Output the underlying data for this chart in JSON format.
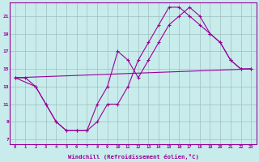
{
  "xlabel": "Windchill (Refroidissement éolien,°C)",
  "bg_color": "#c8ecec",
  "line_color": "#990099",
  "grid_color": "#9fbfbf",
  "xlim": [
    -0.5,
    23.5
  ],
  "ylim": [
    6.5,
    22.5
  ],
  "xticks": [
    0,
    1,
    2,
    3,
    4,
    5,
    6,
    7,
    8,
    9,
    10,
    11,
    12,
    13,
    14,
    15,
    16,
    17,
    18,
    19,
    20,
    21,
    22,
    23
  ],
  "yticks": [
    7,
    9,
    11,
    13,
    15,
    17,
    19,
    21
  ],
  "line1_x": [
    0,
    1,
    2,
    3,
    4,
    5,
    6,
    7,
    8,
    9,
    10,
    11,
    12,
    13,
    14,
    15,
    16,
    17,
    18,
    19,
    20,
    21,
    22,
    23
  ],
  "line1_y": [
    14,
    14,
    13,
    11,
    9,
    8,
    8,
    8,
    9,
    11,
    11,
    13,
    16,
    18,
    20,
    22,
    22,
    21,
    20,
    19,
    18,
    16,
    15,
    15
  ],
  "line2_x": [
    0,
    2,
    3,
    4,
    5,
    6,
    7,
    8,
    9,
    10,
    11,
    12,
    13,
    14,
    15,
    16,
    17,
    18,
    19,
    20,
    21,
    22,
    23
  ],
  "line2_y": [
    14,
    13,
    11,
    9,
    8,
    8,
    8,
    11,
    13,
    17,
    16,
    14,
    16,
    18,
    20,
    21,
    22,
    21,
    19,
    18,
    16,
    15,
    15
  ],
  "line3_x": [
    0,
    23
  ],
  "line3_y": [
    14,
    15
  ]
}
